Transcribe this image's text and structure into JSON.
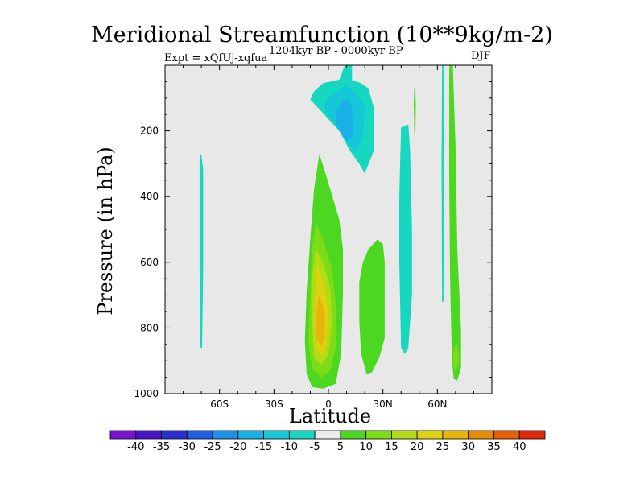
{
  "chart_data": {
    "type": "contour",
    "title": "Meridional Streamfunction (10**9kg/m-2)",
    "subtitle_left": "Expt = xQfUj-xqfua",
    "subtitle_center": "1204kyr BP - 0000kyr BP",
    "subtitle_right": "DJF",
    "xlabel": "Latitude",
    "ylabel": "Pressure (in hPa)",
    "xlim": [
      -90,
      90
    ],
    "ylim": [
      1000,
      0
    ],
    "x_ticks": [
      {
        "value": -60,
        "label": "60S"
      },
      {
        "value": -30,
        "label": "30S"
      },
      {
        "value": 0,
        "label": "0"
      },
      {
        "value": 30,
        "label": "30N"
      },
      {
        "value": 60,
        "label": "60N"
      }
    ],
    "y_ticks": [
      {
        "value": 200,
        "label": "200"
      },
      {
        "value": 400,
        "label": "400"
      },
      {
        "value": 600,
        "label": "600"
      },
      {
        "value": 800,
        "label": "800"
      },
      {
        "value": 1000,
        "label": "1000"
      }
    ],
    "colorbar": {
      "labels": [
        "-40",
        "-35",
        "-30",
        "-25",
        "-20",
        "-15",
        "-10",
        "-5",
        "5",
        "10",
        "15",
        "20",
        "25",
        "30",
        "35",
        "40"
      ],
      "colors": [
        "#7a12d4",
        "#4a14c8",
        "#2a30d0",
        "#1e5fe0",
        "#1e8fe6",
        "#19b0e6",
        "#15c8d8",
        "#16d8c0",
        "#ececec",
        "#4cd820",
        "#7cdc18",
        "#b4dc14",
        "#dcd210",
        "#e6b40c",
        "#e68c08",
        "#e66008",
        "#e02808"
      ]
    },
    "features": [
      {
        "name": "tropical-positive-cell",
        "sign": "positive",
        "lat": [
          -12,
          8
        ],
        "pressure": [
          270,
          980
        ],
        "peak": 35
      },
      {
        "name": "upper-negative-cell",
        "sign": "negative",
        "lat": [
          -5,
          25
        ],
        "pressure": [
          0,
          330
        ],
        "peak": -20
      },
      {
        "name": "nh-midlat-positive-cell",
        "sign": "positive",
        "lat": [
          16,
          30
        ],
        "pressure": [
          530,
          950
        ],
        "peak": 10
      },
      {
        "name": "nh-negative-band",
        "sign": "negative",
        "lat": [
          39,
          46
        ],
        "pressure": [
          180,
          880
        ],
        "peak": -5
      },
      {
        "name": "high-lat-positive-band",
        "sign": "positive",
        "lat": [
          66,
          73
        ],
        "pressure": [
          0,
          960
        ],
        "peak": 15
      },
      {
        "name": "polar-negative-strip",
        "sign": "negative",
        "lat": [
          62,
          64
        ],
        "pressure": [
          0,
          720
        ],
        "peak": -5
      },
      {
        "name": "sh-negative-strip",
        "sign": "negative",
        "lat": [
          -71,
          -69
        ],
        "pressure": [
          270,
          860
        ],
        "peak": -5
      },
      {
        "name": "nh-small-positive-strip",
        "sign": "positive",
        "lat": [
          47,
          48
        ],
        "pressure": [
          60,
          210
        ],
        "peak": 5
      }
    ]
  }
}
